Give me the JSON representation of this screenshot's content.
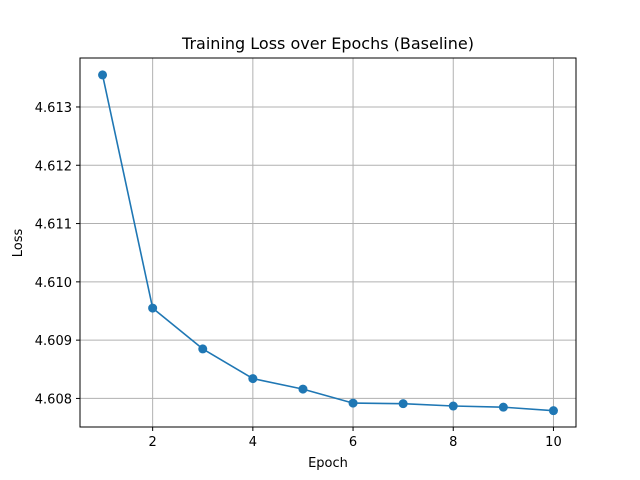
{
  "chart_data": {
    "type": "line",
    "title": "Training Loss over Epochs (Baseline)",
    "xlabel": "Epoch",
    "ylabel": "Loss",
    "x": [
      1,
      2,
      3,
      4,
      5,
      6,
      7,
      8,
      9,
      10
    ],
    "series": [
      {
        "values": [
          4.61355,
          4.60955,
          4.60885,
          4.60834,
          4.60816,
          4.60792,
          4.60791,
          4.60787,
          4.60785,
          4.60779
        ],
        "color": "#1f77b4",
        "marker": "circle"
      }
    ],
    "xticks": [
      2,
      4,
      6,
      8,
      10
    ],
    "xtick_labels": [
      "2",
      "4",
      "6",
      "8",
      "10"
    ],
    "yticks": [
      4.608,
      4.609,
      4.61,
      4.611,
      4.612,
      4.613
    ],
    "ytick_labels": [
      "4.608",
      "4.609",
      "4.610",
      "4.611",
      "4.612",
      "4.613"
    ],
    "xlim": [
      0.55,
      10.45
    ],
    "ylim": [
      4.60751,
      4.61384
    ],
    "grid": true,
    "legend": false
  }
}
